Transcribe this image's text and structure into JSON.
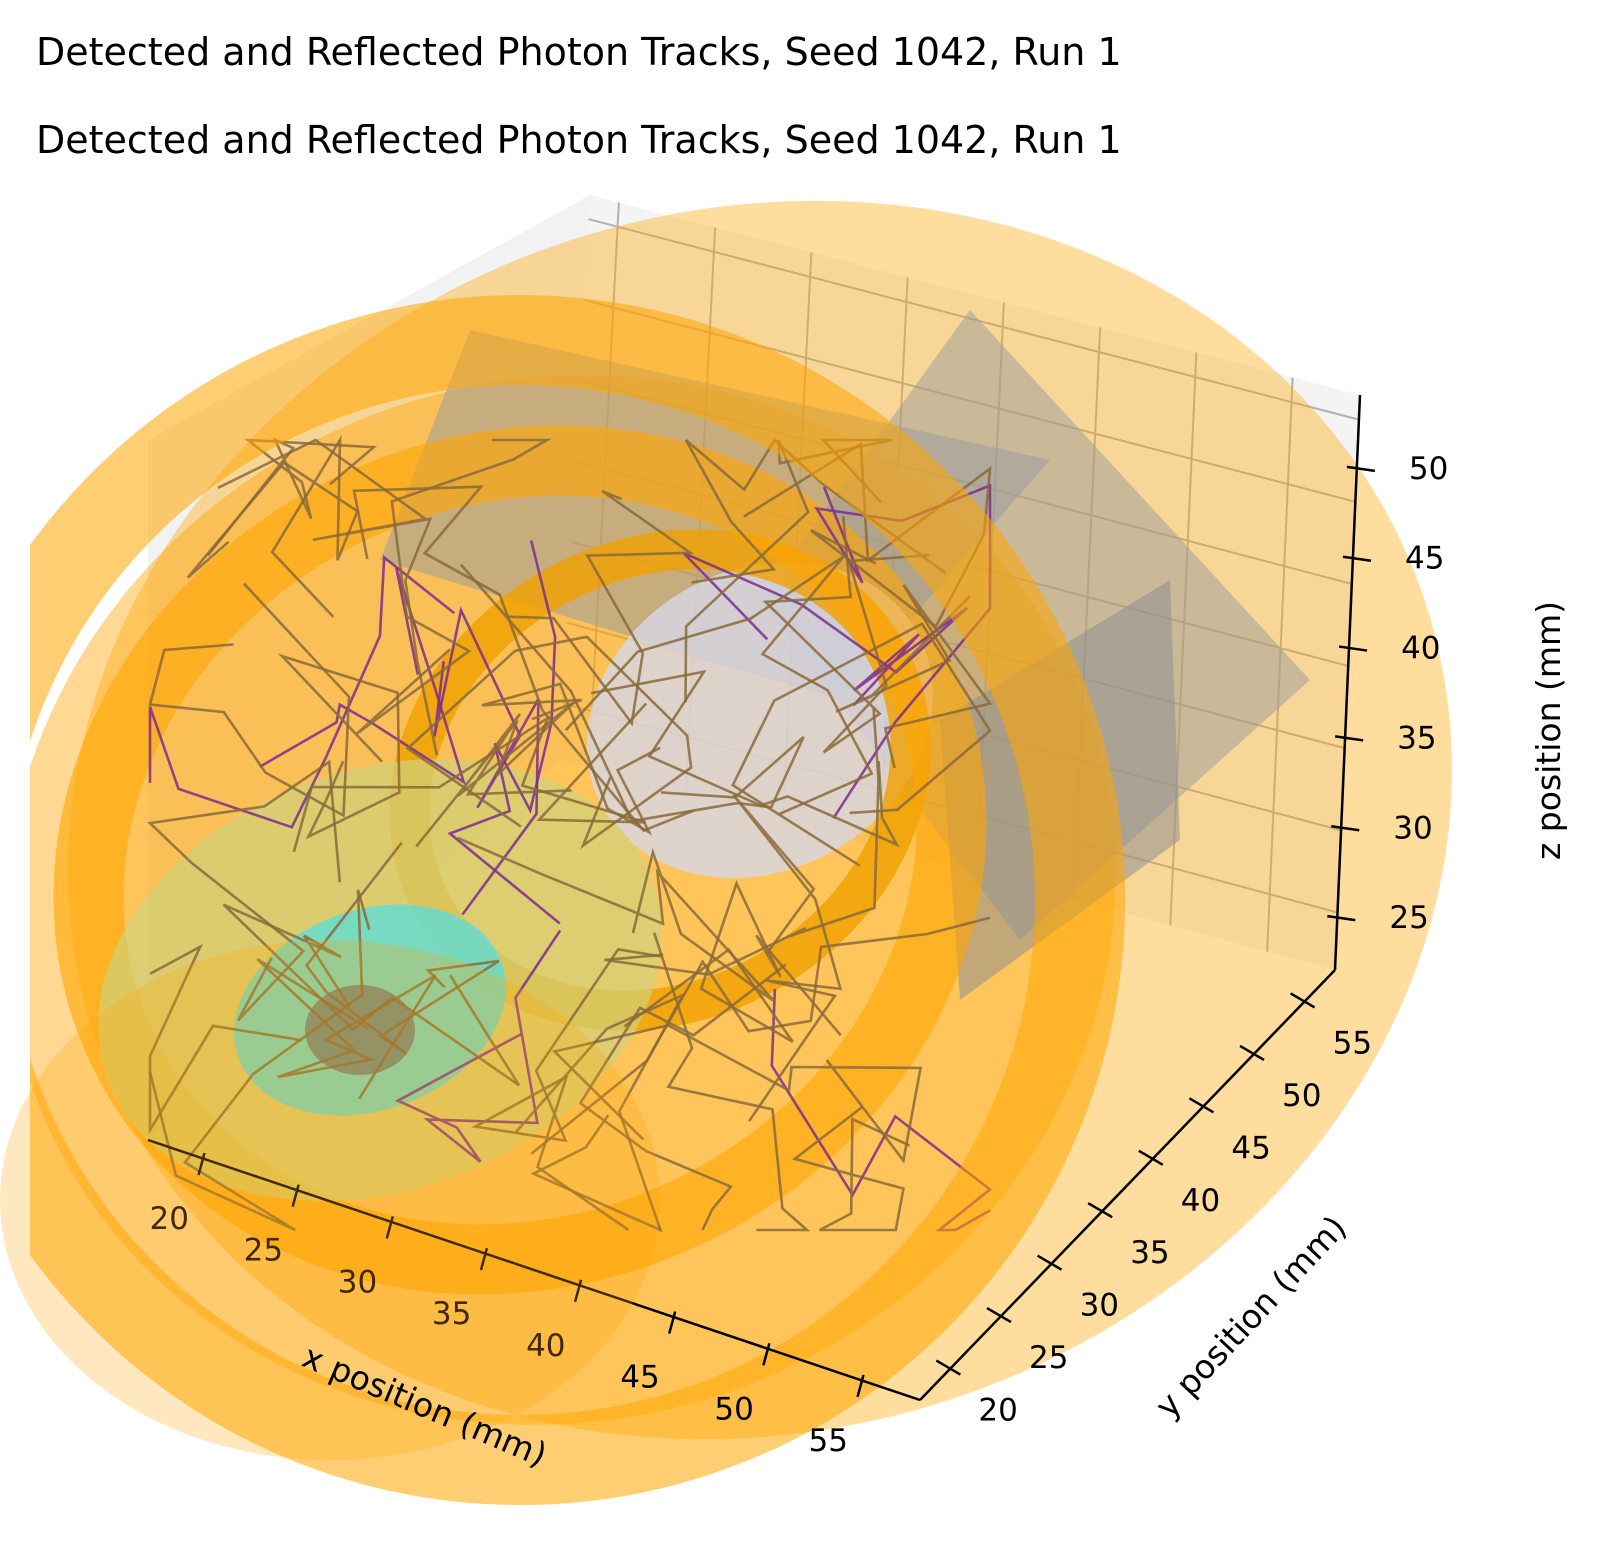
{
  "titles": [
    "Detected and Reflected Photon Tracks, Seed 1042, Run 1",
    "Detected and Reflected Photon Tracks, Seed 1042, Run 1"
  ],
  "colors": {
    "geometry": "#ffa500",
    "tracks_reflected": "#8a6a3a",
    "tracks_detected": "#7b2d8e",
    "detector": "#4fe0e6",
    "pane": "#f0f0f0",
    "panel": "#a0a0a0"
  },
  "chart_data": {
    "type": "3d-line",
    "xlabel": "x position (mm)",
    "ylabel": "y position (mm)",
    "zlabel": "z position (mm)",
    "xticks": [
      20,
      25,
      30,
      35,
      40,
      45,
      50,
      55
    ],
    "yticks": [
      20,
      25,
      30,
      35,
      40,
      45,
      50,
      55
    ],
    "zticks": [
      25,
      30,
      35,
      40,
      45,
      50
    ],
    "xlim": [
      17,
      58
    ],
    "ylim": [
      17,
      58
    ],
    "zlim": [
      22,
      54
    ],
    "grid": true
  }
}
